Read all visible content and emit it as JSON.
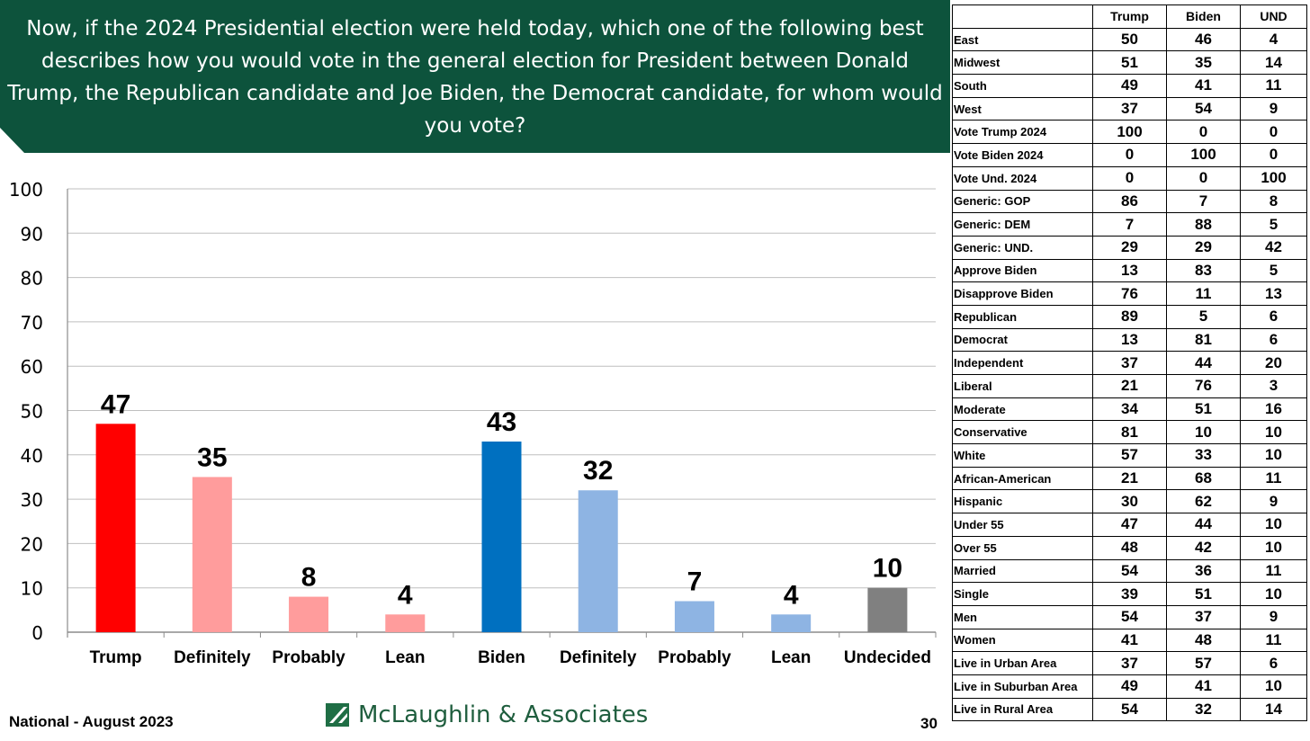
{
  "header": {
    "question": "Now, if the 2024 Presidential election were held today, which one of the following best describes how you would vote in the general election for President between Donald Trump, the Republican candidate and Joe Biden, the Democrat candidate, for whom would you vote?"
  },
  "footer": {
    "survey": "National - August 2023",
    "brand": "McLaughlin & Associates",
    "page": "30"
  },
  "chart_data": {
    "type": "bar",
    "categories": [
      "Trump",
      "Definitely",
      "Probably",
      "Lean",
      "Biden",
      "Definitely",
      "Probably",
      "Lean",
      "Undecided"
    ],
    "values": [
      47,
      35,
      8,
      4,
      43,
      32,
      7,
      4,
      10
    ],
    "colors": [
      "#ff0000",
      "#ff9c9c",
      "#ff9c9c",
      "#ff9c9c",
      "#0070c0",
      "#8eb4e3",
      "#8eb4e3",
      "#8eb4e3",
      "#808080"
    ],
    "yticks": [
      "0",
      "10",
      "20",
      "30",
      "40",
      "50",
      "60",
      "70",
      "80",
      "90",
      "100"
    ],
    "ylim": [
      0,
      100
    ],
    "grid": true,
    "title": "",
    "xlabel": "",
    "ylabel": ""
  },
  "table": {
    "columns": [
      "Trump",
      "Biden",
      "UND"
    ],
    "rows": [
      {
        "label": "East",
        "values": [
          "50",
          "46",
          "4"
        ]
      },
      {
        "label": "Midwest",
        "values": [
          "51",
          "35",
          "14"
        ]
      },
      {
        "label": "South",
        "values": [
          "49",
          "41",
          "11"
        ]
      },
      {
        "label": "West",
        "values": [
          "37",
          "54",
          "9"
        ]
      },
      {
        "label": "Vote Trump 2024",
        "values": [
          "100",
          "0",
          "0"
        ]
      },
      {
        "label": "Vote Biden 2024",
        "values": [
          "0",
          "100",
          "0"
        ]
      },
      {
        "label": "Vote Und. 2024",
        "values": [
          "0",
          "0",
          "100"
        ]
      },
      {
        "label": "Generic: GOP",
        "values": [
          "86",
          "7",
          "8"
        ]
      },
      {
        "label": "Generic: DEM",
        "values": [
          "7",
          "88",
          "5"
        ]
      },
      {
        "label": "Generic: UND.",
        "values": [
          "29",
          "29",
          "42"
        ]
      },
      {
        "label": "Approve Biden",
        "values": [
          "13",
          "83",
          "5"
        ]
      },
      {
        "label": "Disapprove Biden",
        "values": [
          "76",
          "11",
          "13"
        ]
      },
      {
        "label": "Republican",
        "values": [
          "89",
          "5",
          "6"
        ]
      },
      {
        "label": "Democrat",
        "values": [
          "13",
          "81",
          "6"
        ]
      },
      {
        "label": "Independent",
        "values": [
          "37",
          "44",
          "20"
        ]
      },
      {
        "label": "Liberal",
        "values": [
          "21",
          "76",
          "3"
        ]
      },
      {
        "label": "Moderate",
        "values": [
          "34",
          "51",
          "16"
        ]
      },
      {
        "label": "Conservative",
        "values": [
          "81",
          "10",
          "10"
        ]
      },
      {
        "label": "White",
        "values": [
          "57",
          "33",
          "10"
        ]
      },
      {
        "label": "African-American",
        "values": [
          "21",
          "68",
          "11"
        ]
      },
      {
        "label": "Hispanic",
        "values": [
          "30",
          "62",
          "9"
        ]
      },
      {
        "label": "Under 55",
        "values": [
          "47",
          "44",
          "10"
        ]
      },
      {
        "label": "Over 55",
        "values": [
          "48",
          "42",
          "10"
        ]
      },
      {
        "label": "Married",
        "values": [
          "54",
          "36",
          "11"
        ]
      },
      {
        "label": "Single",
        "values": [
          "39",
          "51",
          "10"
        ]
      },
      {
        "label": "Men",
        "values": [
          "54",
          "37",
          "9"
        ]
      },
      {
        "label": "Women",
        "values": [
          "41",
          "48",
          "11"
        ]
      },
      {
        "label": "Live in Urban Area",
        "values": [
          "37",
          "57",
          "6"
        ]
      },
      {
        "label": "Live in Suburban Area",
        "values": [
          "49",
          "41",
          "10"
        ]
      },
      {
        "label": "Live in Rural Area",
        "values": [
          "54",
          "32",
          "14"
        ]
      }
    ]
  }
}
